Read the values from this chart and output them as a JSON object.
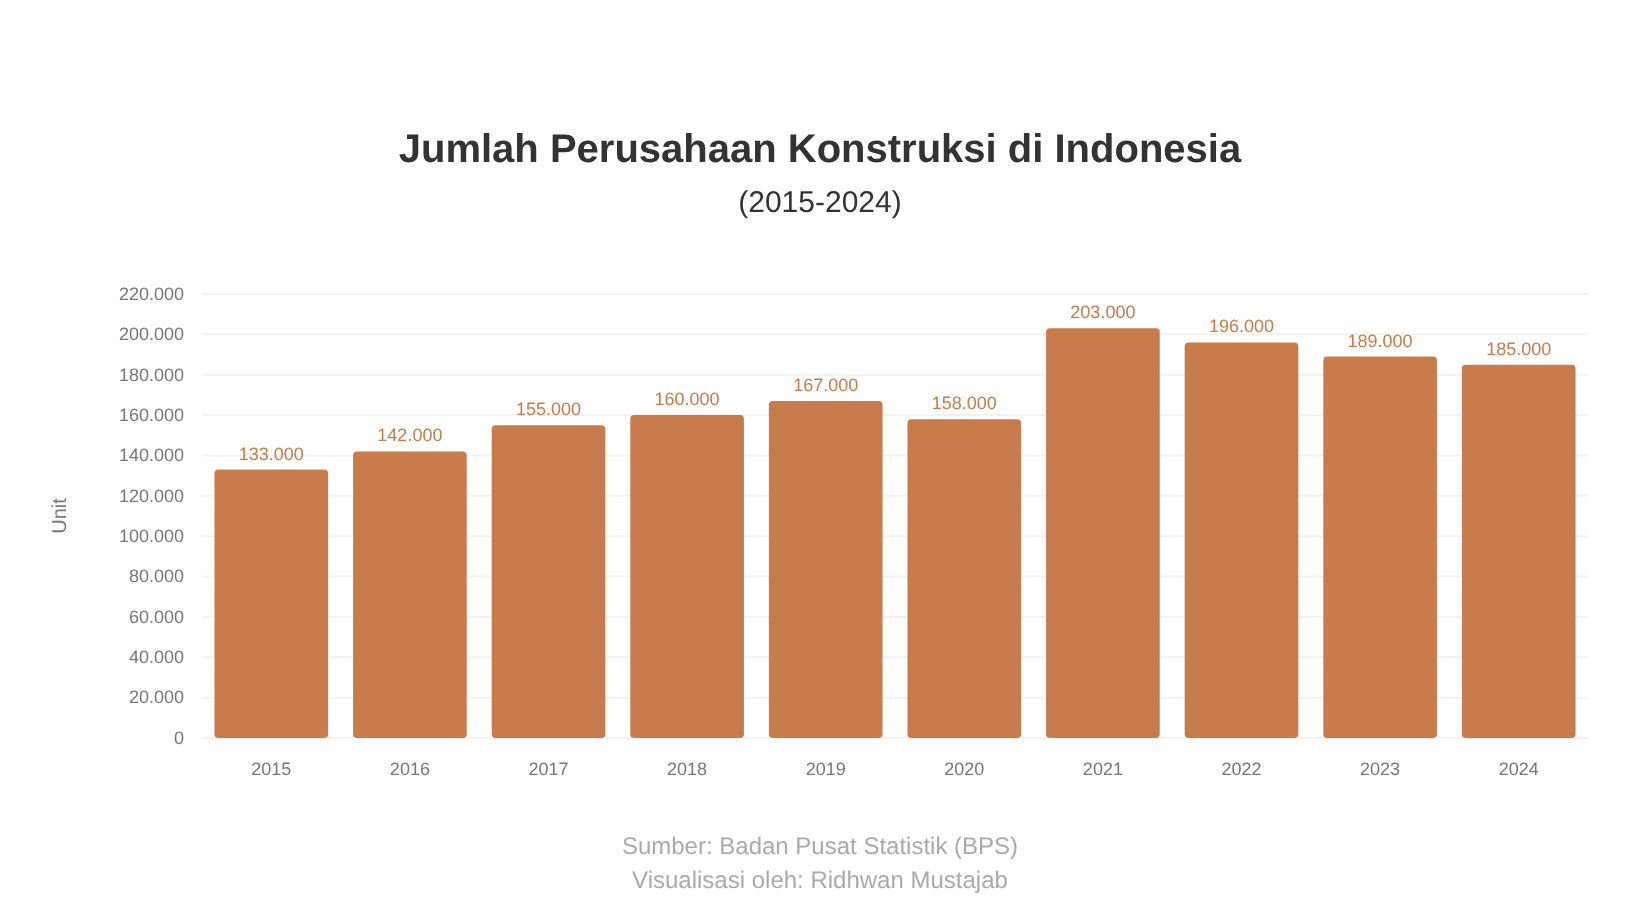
{
  "chart_data": {
    "type": "bar",
    "title": "Jumlah Perusahaan Konstruksi di Indonesia",
    "subtitle": "(2015-2024)",
    "ylabel": "Unit",
    "categories": [
      "2015",
      "2016",
      "2017",
      "2018",
      "2019",
      "2020",
      "2021",
      "2022",
      "2023",
      "2024"
    ],
    "values": [
      133000,
      142000,
      155000,
      160000,
      167000,
      158000,
      203000,
      196000,
      189000,
      185000
    ],
    "value_labels": [
      "133.000",
      "142.000",
      "155.000",
      "160.000",
      "167.000",
      "158.000",
      "203.000",
      "196.000",
      "189.000",
      "185.000"
    ],
    "color": "#c87b4b",
    "grid": "y",
    "ylim": [
      0,
      220000
    ],
    "yticks": [
      0,
      {
        "value": 20000,
        "label": "20.000"
      },
      {
        "value": 40000,
        "label": "40.000"
      },
      {
        "value": 60000,
        "label": "60.000"
      },
      {
        "value": 80000,
        "label": "80.000"
      },
      {
        "value": 100000,
        "label": "100.000"
      },
      {
        "value": 120000,
        "label": "120.000"
      },
      {
        "value": 140000,
        "label": "140.000"
      },
      {
        "value": 160000,
        "label": "160.000"
      },
      {
        "value": 180000,
        "label": "180.000"
      },
      {
        "value": 200000,
        "label": "200.000"
      },
      {
        "value": 220000,
        "label": "220.000"
      }
    ],
    "annotations": [
      "Sumber: Badan Pusat Statistik (BPS)",
      "Visualisasi oleh: Ridhwan Mustajab"
    ]
  }
}
